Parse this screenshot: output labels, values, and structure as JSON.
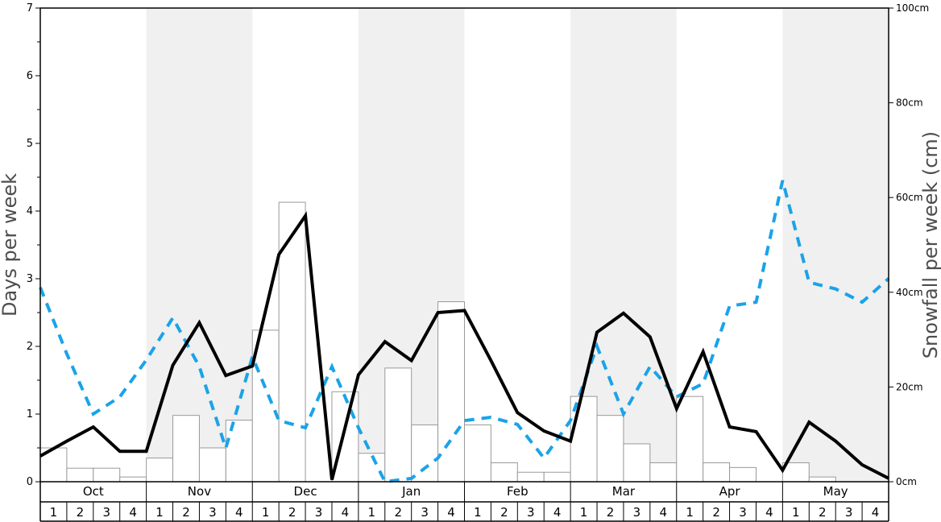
{
  "chart_data": {
    "type": "bar",
    "months": [
      "Oct",
      "Nov",
      "Dec",
      "Jan",
      "Feb",
      "Mar",
      "Apr",
      "May"
    ],
    "weeks": [
      "1",
      "2",
      "3",
      "4"
    ],
    "ylabel_left": "Days per week",
    "ylabel_right": "Snowfall per week (cm)",
    "ylim_left": [
      0,
      7
    ],
    "ylim_right": [
      0,
      100
    ],
    "left_ticks": [
      "0",
      "1",
      "2",
      "3",
      "4",
      "5",
      "6",
      "7"
    ],
    "right_ticks": [
      "0cm",
      "20cm",
      "40cm",
      "60cm",
      "80cm",
      "100cm"
    ],
    "series": [
      {
        "type": "bar",
        "axis": "left",
        "color": "#ffffff",
        "values": [
          0.5,
          0.2,
          0.2,
          0.07,
          0.35,
          0.98,
          0.5,
          0.91,
          2.24,
          4.13,
          null,
          1.33,
          0.42,
          1.68,
          0.84,
          2.66,
          0.84,
          0.28,
          0.14,
          0.14,
          1.26,
          0.98,
          0.56,
          0.28,
          1.26,
          0.28,
          0.21,
          0.0,
          0.28,
          0.07,
          0.0,
          0.0
        ]
      },
      {
        "type": "line",
        "axis": "left",
        "color": "#000000",
        "values": [
          0.38,
          0.6,
          0.81,
          0.45,
          0.45,
          1.72,
          2.35,
          1.57,
          1.71,
          3.36,
          3.93,
          0.03,
          1.58,
          2.07,
          1.79,
          2.5,
          2.53,
          1.79,
          1.02,
          0.75,
          0.6,
          2.21,
          2.49,
          2.14,
          1.08,
          1.92,
          0.81,
          0.74,
          0.17,
          0.88,
          0.6,
          0.25,
          0.05
        ]
      },
      {
        "type": "line",
        "axis": "right",
        "color": "#1aa3e8",
        "values": [
          41,
          27,
          14.3,
          17.9,
          25.7,
          34.6,
          24.3,
          7.1,
          26.4,
          12.9,
          11.4,
          24.3,
          11.4,
          0.0,
          0.7,
          5.0,
          12.9,
          13.6,
          12.1,
          5.0,
          12.9,
          28.6,
          14.3,
          24.3,
          17.9,
          20.7,
          37.1,
          37.9,
          63.6,
          42.1,
          40.7,
          37.9,
          42.9
        ]
      }
    ]
  }
}
